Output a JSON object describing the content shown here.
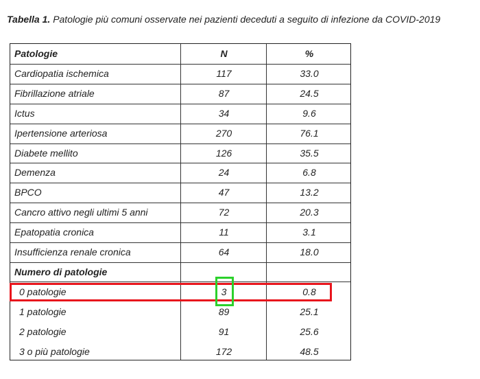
{
  "header": {
    "label": "Tabella 1.",
    "title": "Patologie più comuni osservate nei pazienti deceduti a seguito di infezione da COVID-2019"
  },
  "table": {
    "columns": [
      "Patologie",
      "N",
      "%"
    ],
    "rows": [
      [
        "Cardiopatia ischemica",
        "117",
        "33.0"
      ],
      [
        "Fibrillazione atriale",
        "87",
        "24.5"
      ],
      [
        "Ictus",
        "34",
        "9.6"
      ],
      [
        "Ipertensione arteriosa",
        "270",
        "76.1"
      ],
      [
        "Diabete mellito",
        "126",
        "35.5"
      ],
      [
        "Demenza",
        "24",
        "6.8"
      ],
      [
        "BPCO",
        "47",
        "13.2"
      ],
      [
        "Cancro attivo negli ultimi 5 anni",
        "72",
        "20.3"
      ],
      [
        "Epatopatia cronica",
        "11",
        "3.1"
      ],
      [
        "Insufficienza renale cronica",
        "64",
        "18.0"
      ]
    ],
    "section": "Numero di patologie",
    "subrows": [
      [
        "0 patologie",
        "3",
        "0.8"
      ],
      [
        "1 patologie",
        "89",
        "25.1"
      ],
      [
        "2 patologie",
        "91",
        "25.6"
      ],
      [
        "3 o più patologie",
        "172",
        "48.5"
      ]
    ]
  }
}
